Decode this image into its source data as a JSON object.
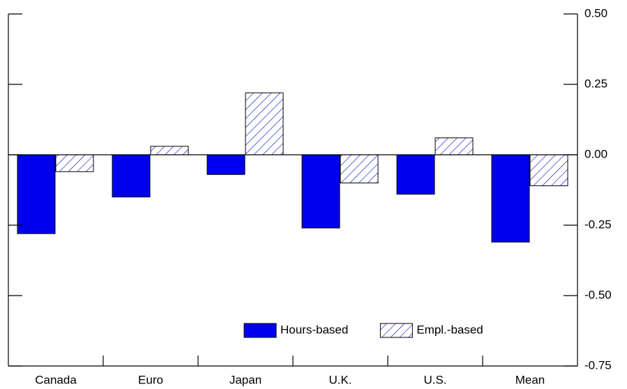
{
  "chart_data": {
    "type": "bar",
    "categories": [
      "Canada",
      "Euro",
      "Japan",
      "U.K.",
      "U.S.",
      "Mean"
    ],
    "series": [
      {
        "name": "Hours-based",
        "color": "#0000ee",
        "pattern": "solid",
        "values": [
          -0.28,
          -0.15,
          -0.07,
          -0.26,
          -0.14,
          -0.31
        ]
      },
      {
        "name": "Empl.-based",
        "color": "#0000cc",
        "pattern": "hatch",
        "values": [
          -0.06,
          0.03,
          0.22,
          -0.1,
          0.06,
          -0.11
        ]
      }
    ],
    "ylim": [
      -0.75,
      0.5
    ],
    "yticks": [
      {
        "value": 0.5,
        "label": "0.50"
      },
      {
        "value": 0.25,
        "label": "0.25"
      },
      {
        "value": 0,
        "label": "0.00"
      },
      {
        "value": -0.25,
        "label": "-0.25"
      },
      {
        "value": -0.5,
        "label": "-0.50"
      },
      {
        "value": -0.75,
        "label": "-0.75"
      }
    ],
    "grid": false,
    "legend": "lower-right"
  }
}
